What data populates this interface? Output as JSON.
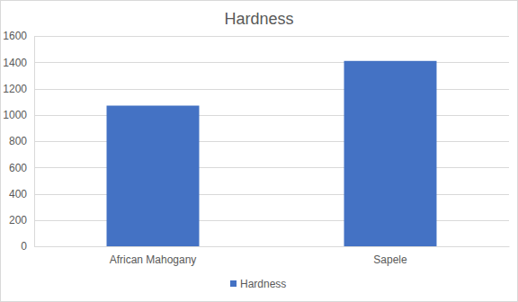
{
  "chart_data": {
    "type": "bar",
    "title": "Hardness",
    "categories": [
      "African Mahogany",
      "Sapele"
    ],
    "series": [
      {
        "name": "Hardness",
        "color": "#4472c4",
        "values": [
          1070,
          1410
        ]
      }
    ],
    "ylim": [
      0,
      1600
    ],
    "yticks": [
      0,
      200,
      400,
      600,
      800,
      1000,
      1200,
      1400,
      1600
    ],
    "grid": true,
    "legend": "bottom"
  }
}
